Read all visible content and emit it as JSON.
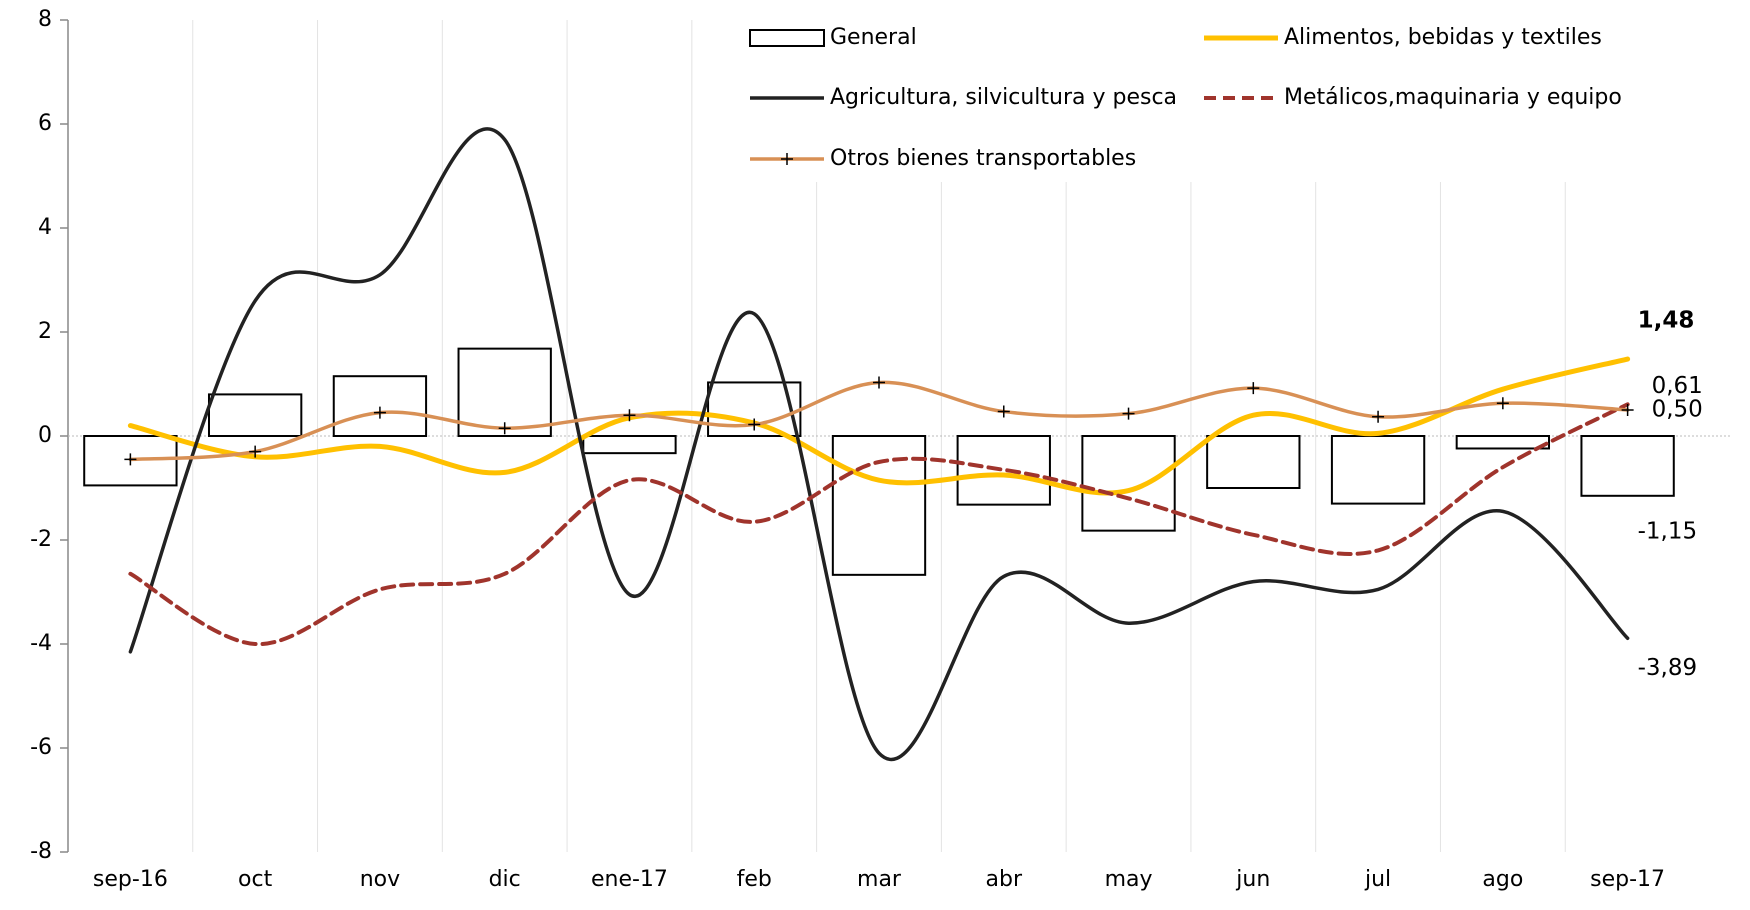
{
  "chart_data": {
    "type": "bar",
    "categories": [
      "sep-16",
      "oct",
      "nov",
      "dic",
      "ene-17",
      "feb",
      "mar",
      "abr",
      "may",
      "jun",
      "jul",
      "ago",
      "sep-17"
    ],
    "series": [
      {
        "name": "General",
        "type": "bar",
        "color": "#000000",
        "values": [
          -0.95,
          0.8,
          1.15,
          1.68,
          -0.33,
          1.03,
          -2.67,
          -1.32,
          -1.82,
          -1.0,
          -1.3,
          -0.24,
          -1.15
        ],
        "value_labels": [
          null,
          null,
          null,
          null,
          null,
          null,
          null,
          null,
          null,
          null,
          null,
          null,
          "-1,15"
        ]
      },
      {
        "name": "Alimentos, bebidas y textiles",
        "type": "line",
        "color": "#ffc000",
        "values": [
          0.2,
          -0.4,
          -0.2,
          -0.7,
          0.35,
          0.25,
          -0.85,
          -0.75,
          -1.05,
          0.4,
          0.05,
          0.9,
          1.48
        ],
        "value_labels": [
          null,
          null,
          null,
          null,
          null,
          null,
          null,
          null,
          null,
          null,
          null,
          null,
          "1,48"
        ]
      },
      {
        "name": "Agricultura, silvicultura y pesca",
        "type": "line",
        "color": "#222222",
        "values": [
          -4.15,
          2.6,
          3.1,
          5.7,
          -3.05,
          2.35,
          -6.1,
          -2.7,
          -3.6,
          -2.8,
          -2.95,
          -1.45,
          -3.89
        ],
        "value_labels": [
          null,
          null,
          null,
          null,
          null,
          null,
          null,
          null,
          null,
          null,
          null,
          null,
          "-3,89"
        ]
      },
      {
        "name": "Metálicos,maquinaria y equipo",
        "type": "line",
        "color": "#a0342c",
        "dash": true,
        "values": [
          -2.65,
          -4.0,
          -2.95,
          -2.65,
          -0.85,
          -1.65,
          -0.5,
          -0.65,
          -1.2,
          -1.9,
          -2.2,
          -0.6,
          0.61
        ],
        "value_labels": [
          null,
          null,
          null,
          null,
          null,
          null,
          null,
          null,
          null,
          null,
          null,
          null,
          "0,61"
        ]
      },
      {
        "name": "Otros bienes transportables",
        "type": "line",
        "color": "#d89055",
        "marker": "+",
        "values": [
          -0.45,
          -0.3,
          0.45,
          0.15,
          0.4,
          0.22,
          1.03,
          0.47,
          0.43,
          0.92,
          0.37,
          0.63,
          0.5
        ],
        "value_labels": [
          null,
          null,
          null,
          null,
          null,
          null,
          null,
          null,
          null,
          null,
          null,
          null,
          "0,50"
        ]
      }
    ],
    "ylim": [
      -8,
      8
    ],
    "yticks": [
      -8,
      -6,
      -4,
      -2,
      0,
      2,
      4,
      6,
      8
    ],
    "grid": true
  }
}
